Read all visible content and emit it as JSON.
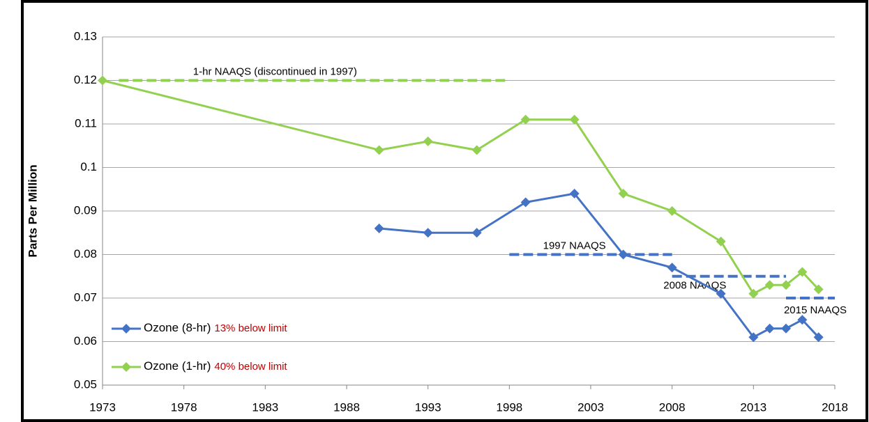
{
  "chart_data": {
    "type": "line",
    "y_label": "Parts Per Million",
    "xlim": [
      1973,
      2018
    ],
    "xticks": [
      1973,
      1978,
      1983,
      1988,
      1993,
      1998,
      2003,
      2008,
      2013,
      2018
    ],
    "ylim": [
      0.05,
      0.13
    ],
    "yticks": [
      0.05,
      0.06,
      0.07,
      0.08,
      0.09,
      0.1,
      0.11,
      0.12,
      0.13
    ],
    "grid": true,
    "legend": "lower left",
    "series": [
      {
        "name": "Ozone (8-hr)",
        "note": "13% below limit",
        "color": "#4472c4",
        "x": [
          1990,
          1993,
          1996,
          1999,
          2002,
          2005,
          2008,
          2011,
          2013,
          2014,
          2015,
          2016,
          2017
        ],
        "values": [
          0.086,
          0.085,
          0.085,
          0.092,
          0.094,
          0.08,
          0.077,
          0.071,
          0.061,
          0.063,
          0.063,
          0.065,
          0.061
        ]
      },
      {
        "name": "Ozone (1-hr)",
        "note": "40% below limit",
        "color": "#92d050",
        "x": [
          1973,
          1990,
          1993,
          1996,
          1999,
          2002,
          2005,
          2008,
          2011,
          2013,
          2014,
          2015,
          2016,
          2017
        ],
        "values": [
          0.12,
          0.104,
          0.106,
          0.104,
          0.111,
          0.111,
          0.094,
          0.09,
          0.083,
          0.071,
          0.073,
          0.073,
          0.076,
          0.072
        ]
      }
    ],
    "note_color": "#c00000",
    "reference_lines": [
      {
        "label": "1-hr NAAQS (discontinued in 1997)",
        "value": 0.12,
        "x": [
          1974,
          1998
        ],
        "color": "#92d050"
      },
      {
        "label": "1997 NAAQS",
        "value": 0.08,
        "x": [
          1998,
          2008
        ],
        "color": "#4472c4"
      },
      {
        "label": "2008 NAAQS",
        "value": 0.075,
        "x": [
          2008,
          2015
        ],
        "color": "#4472c4"
      },
      {
        "label": "2015 NAAQS",
        "value": 0.07,
        "x": [
          2015,
          2018
        ],
        "color": "#4472c4"
      }
    ]
  }
}
